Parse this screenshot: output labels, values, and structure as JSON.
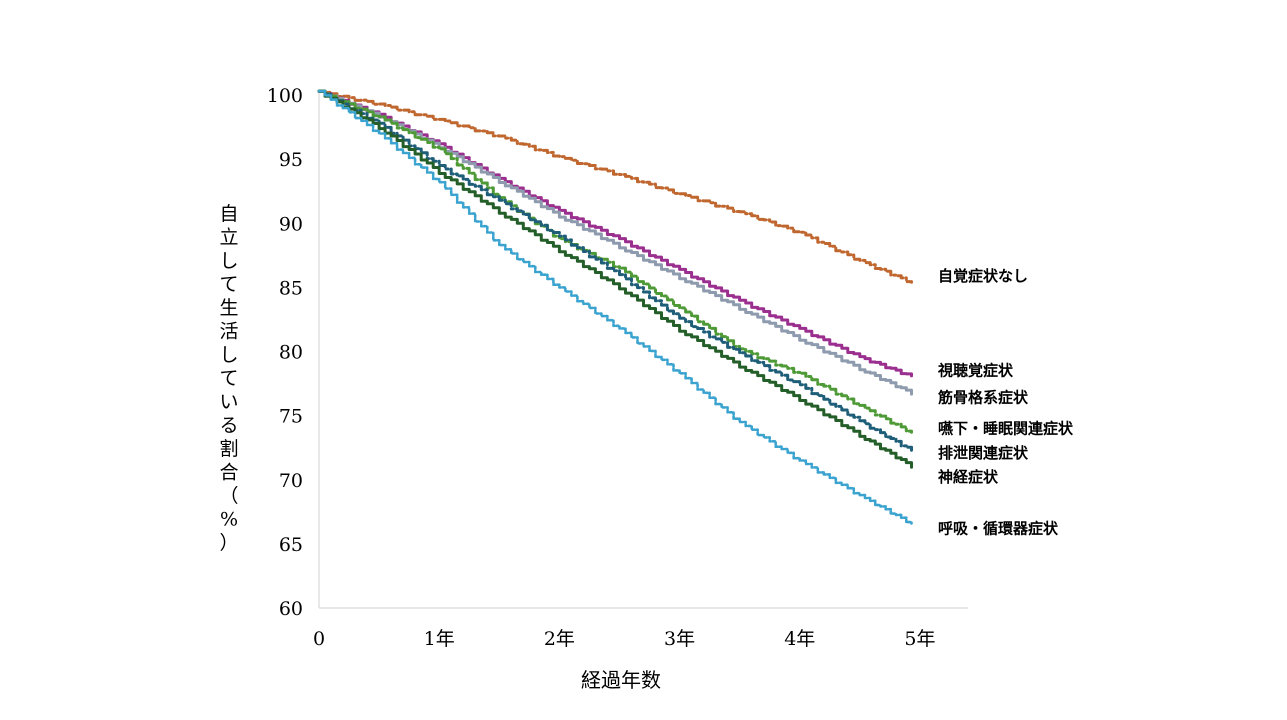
{
  "chart_data": {
    "type": "line",
    "title": "",
    "xlabel": "経過年数",
    "ylabel": "自立して生活している割合（%）",
    "xlim": [
      0,
      5.4
    ],
    "ylim": [
      60,
      100
    ],
    "x_ticks": [
      {
        "value": 0,
        "label": "0"
      },
      {
        "value": 1,
        "label": "1年"
      },
      {
        "value": 2,
        "label": "2年"
      },
      {
        "value": 3,
        "label": "3年"
      },
      {
        "value": 4,
        "label": "4年"
      },
      {
        "value": 5,
        "label": "5年"
      }
    ],
    "y_ticks": [
      {
        "value": 100,
        "label": "100"
      },
      {
        "value": 95,
        "label": "95"
      },
      {
        "value": 90,
        "label": "90"
      },
      {
        "value": 85,
        "label": "85"
      },
      {
        "value": 80,
        "label": "80"
      },
      {
        "value": 75,
        "label": "75"
      },
      {
        "value": 70,
        "label": "70"
      },
      {
        "value": 65,
        "label": "65"
      },
      {
        "value": 60,
        "label": "60"
      }
    ],
    "grid": false,
    "legend": "labels at line ends (right)",
    "series": [
      {
        "name": "自覚症状なし",
        "color": "#C0672F",
        "dash": "dashdot",
        "x": [
          0,
          0.5,
          1,
          1.5,
          2,
          2.5,
          3,
          3.5,
          4,
          4.5,
          4.93
        ],
        "y": [
          100.3,
          99.3,
          98.1,
          96.8,
          95.2,
          93.8,
          92.3,
          90.9,
          89.3,
          87.1,
          85.4
        ]
      },
      {
        "name": "視聴覚症状",
        "color": "#9B2F8F",
        "dash": "solid",
        "x": [
          0,
          0.5,
          1,
          1.5,
          2,
          2.5,
          3,
          3.5,
          4,
          4.5,
          4.93
        ],
        "y": [
          100.3,
          98.5,
          96.2,
          93.5,
          91.0,
          88.8,
          86.4,
          84.0,
          81.8,
          79.6,
          78.1
        ]
      },
      {
        "name": "筋骨格系症状",
        "color": "#8E9BAE",
        "dash": "solid",
        "x": [
          0,
          0.5,
          1,
          1.5,
          2,
          2.5,
          3,
          3.5,
          4,
          4.5,
          4.93
        ],
        "y": [
          100.3,
          98.4,
          96.0,
          93.3,
          90.6,
          88.2,
          85.8,
          83.4,
          81.0,
          78.7,
          76.8
        ]
      },
      {
        "name": "嚥下・睡眠関連症状",
        "color": "#4E9A36",
        "dash": "dashdot",
        "x": [
          0,
          0.5,
          1,
          1.5,
          2,
          2.5,
          3,
          3.5,
          4,
          4.5,
          4.93
        ],
        "y": [
          100.3,
          98.3,
          95.8,
          92.0,
          88.8,
          86.5,
          83.4,
          80.2,
          78.3,
          75.8,
          73.7
        ]
      },
      {
        "name": "排泄関連症状",
        "color": "#1F5E78",
        "dash": "dashdot",
        "x": [
          0,
          0.5,
          1,
          1.5,
          2,
          2.5,
          3,
          3.5,
          4,
          4.5,
          4.93
        ],
        "y": [
          100.3,
          97.8,
          94.5,
          91.8,
          89.0,
          86.0,
          82.6,
          79.9,
          77.4,
          74.6,
          72.3
        ]
      },
      {
        "name": "神経症状",
        "color": "#245E29",
        "dash": "solid",
        "x": [
          0,
          0.5,
          1,
          1.5,
          2,
          2.5,
          3,
          3.5,
          4,
          4.5,
          4.93
        ],
        "y": [
          100.3,
          97.5,
          94.0,
          90.9,
          87.9,
          85.0,
          81.7,
          78.9,
          76.3,
          73.5,
          71.1
        ]
      },
      {
        "name": "呼吸・循環器症状",
        "color": "#3AA3CF",
        "dash": "dotted",
        "x": [
          0,
          0.5,
          1,
          1.5,
          2,
          2.5,
          3,
          3.5,
          4,
          4.5,
          4.93
        ],
        "y": [
          100.3,
          97.0,
          93.2,
          88.3,
          85.0,
          81.8,
          78.3,
          74.5,
          71.5,
          68.8,
          66.6
        ]
      }
    ],
    "label_values": [
      85.9,
      78.5,
      76.4,
      74.0,
      72.1,
      70.2,
      66.2
    ]
  }
}
